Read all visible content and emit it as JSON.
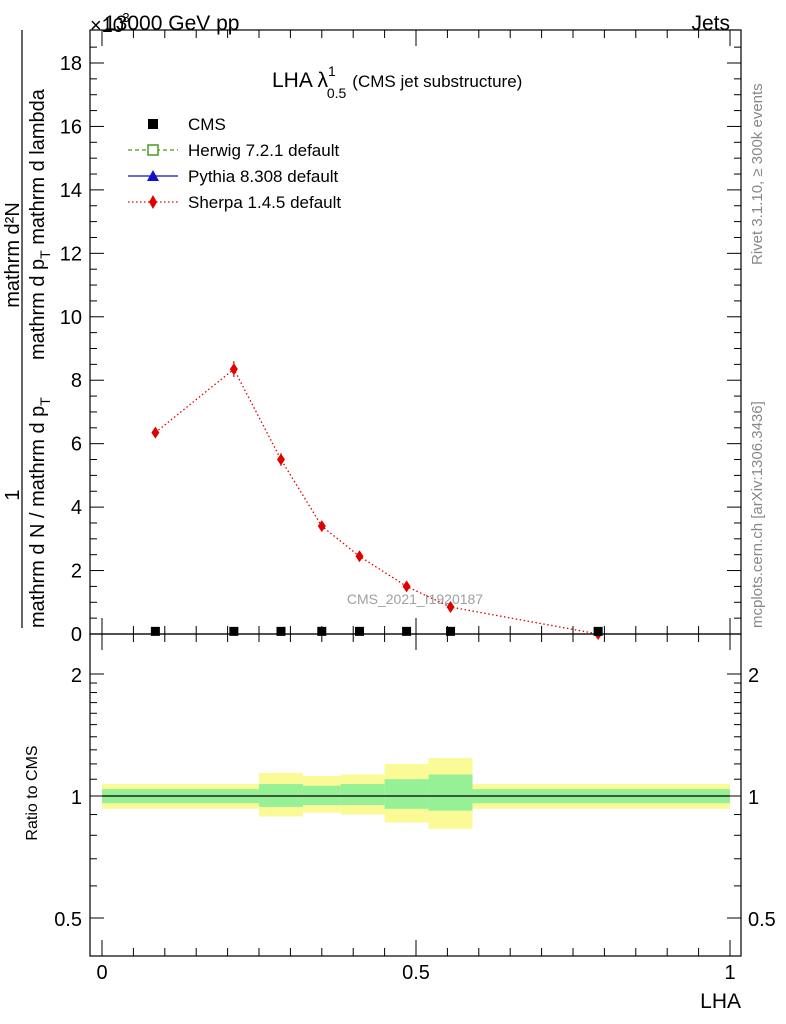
{
  "header": {
    "energy": "13000 GeV pp",
    "process": "Jets",
    "exponent": "×10",
    "exponent_power": "-3"
  },
  "side_labels": {
    "rivet": "Rivet 3.1.10, ≥ 300k events",
    "mcplots": "mcplots.cern.ch [arXiv:1306.3436]"
  },
  "chart_data": {
    "type": "scatter",
    "title_main": "LHA λ",
    "title_sup": "1",
    "title_sub": "0.5",
    "title_note": "(CMS jet substructure)",
    "watermark": "CMS_2021_I1920187",
    "ylabel_main": {
      "numerator": "1",
      "denominator": "mathrm d N / mathrm d p",
      "denominator_sub": "T",
      "right_numerator": "mathrm d²N",
      "right_denominator": "mathrm d p",
      "right_denominator_sub": "T",
      "right_denominator_tail": " mathrm d lambda"
    },
    "xlabel": "LHA",
    "ylabel_ratio": "Ratio to CMS",
    "xlim": [
      0,
      1
    ],
    "ylim_main": [
      0,
      19
    ],
    "ylim_ratio": [
      0.4,
      2.35
    ],
    "x_ticks": [
      "0",
      "0.5",
      "1"
    ],
    "y_ticks_main": [
      "0",
      "2",
      "4",
      "6",
      "8",
      "10",
      "12",
      "14",
      "16",
      "18"
    ],
    "y_ticks_ratio": [
      "0.5",
      "1",
      "2"
    ],
    "legend": [
      {
        "label": "CMS",
        "marker": "square",
        "color": "#000000"
      },
      {
        "label": "Herwig 7.2.1 default",
        "marker": "open-square",
        "color": "#4a9a1a"
      },
      {
        "label": "Pythia 8.308 default",
        "marker": "triangle",
        "color": "#1010cc"
      },
      {
        "label": "Sherpa 1.4.5 default",
        "marker": "diamond",
        "color": "#e00000"
      }
    ],
    "series": [
      {
        "name": "CMS",
        "x": [
          0.085,
          0.21,
          0.285,
          0.35,
          0.41,
          0.485,
          0.555,
          0.79
        ],
        "values": [
          0.02,
          0.02,
          0.02,
          0.02,
          0.02,
          0.02,
          0.02,
          0.02
        ]
      },
      {
        "name": "Sherpa 1.4.5 default",
        "x": [
          0.085,
          0.21,
          0.285,
          0.35,
          0.41,
          0.485,
          0.555,
          0.79
        ],
        "values": [
          6.35,
          8.35,
          5.5,
          3.4,
          2.45,
          1.5,
          0.85,
          0.0
        ],
        "errors": [
          0.15,
          0.25,
          0.2,
          0.15,
          0.1,
          0.08,
          0.06,
          0.0
        ]
      }
    ],
    "ratio_bands": [
      {
        "x0": 0.0,
        "x1": 0.25,
        "inner": [
          0.96,
          1.04
        ],
        "outer": [
          0.93,
          1.07
        ]
      },
      {
        "x0": 0.25,
        "x1": 0.32,
        "inner": [
          0.94,
          1.07
        ],
        "outer": [
          0.89,
          1.14
        ]
      },
      {
        "x0": 0.32,
        "x1": 0.38,
        "inner": [
          0.95,
          1.06
        ],
        "outer": [
          0.91,
          1.12
        ]
      },
      {
        "x0": 0.38,
        "x1": 0.45,
        "inner": [
          0.95,
          1.07
        ],
        "outer": [
          0.9,
          1.13
        ]
      },
      {
        "x0": 0.45,
        "x1": 0.52,
        "inner": [
          0.93,
          1.1
        ],
        "outer": [
          0.86,
          1.2
        ]
      },
      {
        "x0": 0.52,
        "x1": 0.59,
        "inner": [
          0.92,
          1.13
        ],
        "outer": [
          0.83,
          1.24
        ]
      },
      {
        "x0": 0.59,
        "x1": 1.0,
        "inner": [
          0.96,
          1.04
        ],
        "outer": [
          0.93,
          1.07
        ]
      }
    ]
  }
}
